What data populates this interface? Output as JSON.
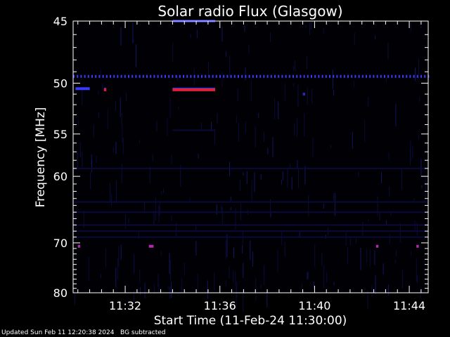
{
  "chart_data": {
    "type": "heatmap",
    "title": "Solar radio Flux (Glasgow)",
    "xlabel": "Start Time (11-Feb-24 11:30:00)",
    "ylabel": "Frequency [MHz]",
    "x_tick_labels": [
      "11:32",
      "11:36",
      "11:40",
      "11:44"
    ],
    "x_tick_values_minutes": [
      2,
      6,
      10,
      14
    ],
    "xlim_minutes": [
      -0.2,
      14.8
    ],
    "y_tick_labels": [
      "45",
      "50",
      "55",
      "60",
      "70",
      "80"
    ],
    "y_tick_values_mhz": [
      45,
      50,
      55,
      60,
      70,
      80
    ],
    "ylim_mhz": [
      45,
      80
    ],
    "y_scale": "reciprocal",
    "background_color": "#000005",
    "colors": {
      "faint": "#0a0a3a",
      "medium": "#2a2ab0",
      "strong": "#3a3aff",
      "hot": "#e0203a",
      "magenta": "#b02ab0"
    },
    "features": [
      {
        "name": "continuous-line",
        "freq_mhz": 49.4,
        "t_start_min": -0.2,
        "t_end_min": 14.8,
        "level": "strong",
        "dotted": true
      },
      {
        "name": "burst",
        "freq_mhz": 50.6,
        "t_start_min": 4.0,
        "t_end_min": 5.8,
        "level": "hot"
      },
      {
        "name": "short-spot",
        "freq_mhz": 50.5,
        "t_start_min": -0.1,
        "t_end_min": 0.5,
        "level": "strong"
      },
      {
        "name": "short-spot",
        "freq_mhz": 50.6,
        "t_start_min": 1.1,
        "t_end_min": 1.2,
        "level": "hot"
      },
      {
        "name": "short-spot",
        "freq_mhz": 51.0,
        "t_start_min": 9.5,
        "t_end_min": 9.6,
        "level": "medium"
      },
      {
        "name": "faint-line",
        "freq_mhz": 45.0,
        "t_start_min": 4.0,
        "t_end_min": 5.8,
        "level": "medium"
      },
      {
        "name": "faint-line",
        "freq_mhz": 54.6,
        "t_start_min": 4.0,
        "t_end_min": 5.8,
        "level": "faint"
      },
      {
        "name": "faint-line",
        "freq_mhz": 59.0,
        "t_start_min": -0.2,
        "t_end_min": 14.8,
        "level": "faint"
      },
      {
        "name": "faint-line",
        "freq_mhz": 63.5,
        "t_start_min": -0.2,
        "t_end_min": 14.8,
        "level": "faint"
      },
      {
        "name": "faint-line",
        "freq_mhz": 65.0,
        "t_start_min": -0.2,
        "t_end_min": 14.8,
        "level": "faint"
      },
      {
        "name": "faint-line",
        "freq_mhz": 67.0,
        "t_start_min": -0.2,
        "t_end_min": 14.8,
        "level": "faint"
      },
      {
        "name": "faint-line",
        "freq_mhz": 68.0,
        "t_start_min": -0.2,
        "t_end_min": 14.8,
        "level": "faint"
      },
      {
        "name": "faint-line",
        "freq_mhz": 69.0,
        "t_start_min": -0.2,
        "t_end_min": 14.8,
        "level": "faint"
      },
      {
        "name": "spot",
        "freq_mhz": 70.6,
        "t_start_min": 0.0,
        "t_end_min": 0.1,
        "level": "magenta"
      },
      {
        "name": "spot",
        "freq_mhz": 70.6,
        "t_start_min": 3.0,
        "t_end_min": 3.2,
        "level": "magenta"
      },
      {
        "name": "spot",
        "freq_mhz": 70.6,
        "t_start_min": 12.6,
        "t_end_min": 12.7,
        "level": "magenta"
      },
      {
        "name": "spot",
        "freq_mhz": 70.6,
        "t_start_min": 14.3,
        "t_end_min": 14.4,
        "level": "magenta"
      }
    ]
  },
  "footer": {
    "updated": "Updated Sun Feb 11 12:20:38 2024",
    "note": "BG subtracted"
  }
}
